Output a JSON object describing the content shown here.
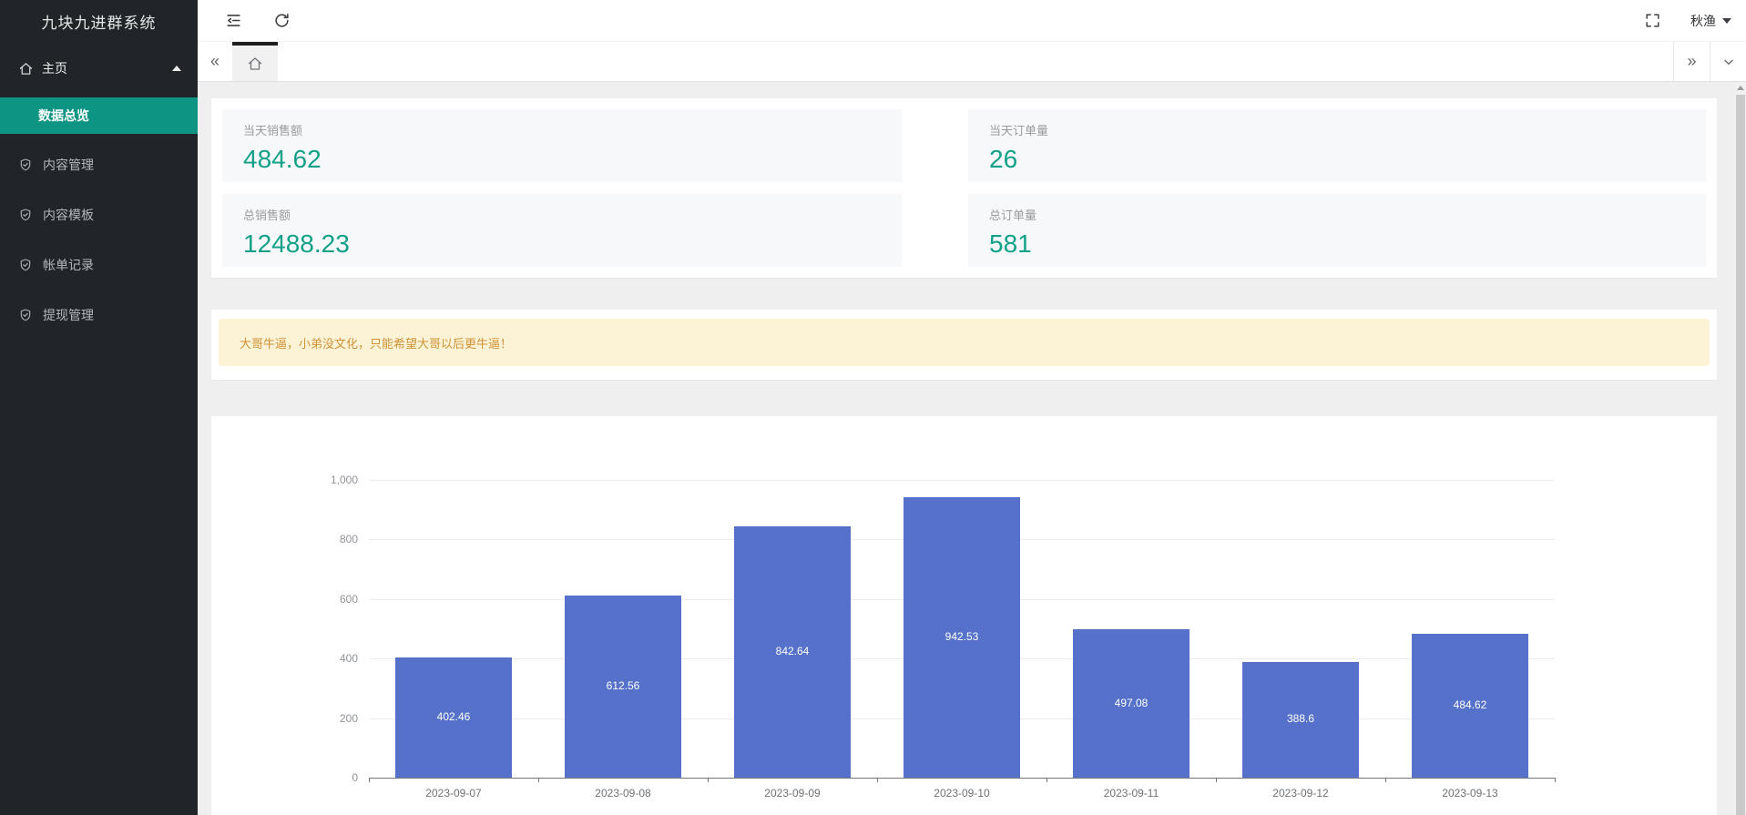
{
  "sidebar": {
    "title": "九块九进群系统",
    "home": {
      "label": "主页"
    },
    "submenu": {
      "label": "数据总览"
    },
    "items": [
      {
        "label": "内容管理"
      },
      {
        "label": "内容模板"
      },
      {
        "label": "帐单记录"
      },
      {
        "label": "提现管理"
      }
    ]
  },
  "topbar": {
    "user_name": "秋渔"
  },
  "tabbar": {
    "left_glyph": "«",
    "right_glyph": "»"
  },
  "stats": {
    "cards": [
      {
        "label": "当天销售额",
        "value": "484.62"
      },
      {
        "label": "当天订单量",
        "value": "26"
      },
      {
        "label": "总销售额",
        "value": "12488.23"
      },
      {
        "label": "总订单量",
        "value": "581"
      }
    ]
  },
  "notice": {
    "text": "大哥牛逼，小弟没文化，只能希望大哥以后更牛逼！"
  },
  "colors": {
    "accent_teal": "#0e9482",
    "stat_value": "#13a089",
    "bar_blue": "#5571c9",
    "notice_bg": "#fcf3d7",
    "notice_text": "#cf9236",
    "sidebar_bg": "#212529"
  },
  "chart_data": {
    "type": "bar",
    "title": "",
    "xlabel": "",
    "ylabel": "",
    "categories": [
      "2023-09-07",
      "2023-09-08",
      "2023-09-09",
      "2023-09-10",
      "2023-09-11",
      "2023-09-12",
      "2023-09-13"
    ],
    "values": [
      402.46,
      612.56,
      842.64,
      942.53,
      497.08,
      388.6,
      484.62
    ],
    "ylim": [
      0,
      1000
    ],
    "yticks": [
      {
        "value": 0,
        "label": "0"
      },
      {
        "value": 200,
        "label": "200"
      },
      {
        "value": 400,
        "label": "400"
      },
      {
        "value": 600,
        "label": "600"
      },
      {
        "value": 800,
        "label": "800"
      },
      {
        "value": 1000,
        "label": "1,000"
      }
    ],
    "grid": true,
    "legend": false,
    "bar_color": "#5571c9",
    "value_label_color": "#ffffff"
  }
}
